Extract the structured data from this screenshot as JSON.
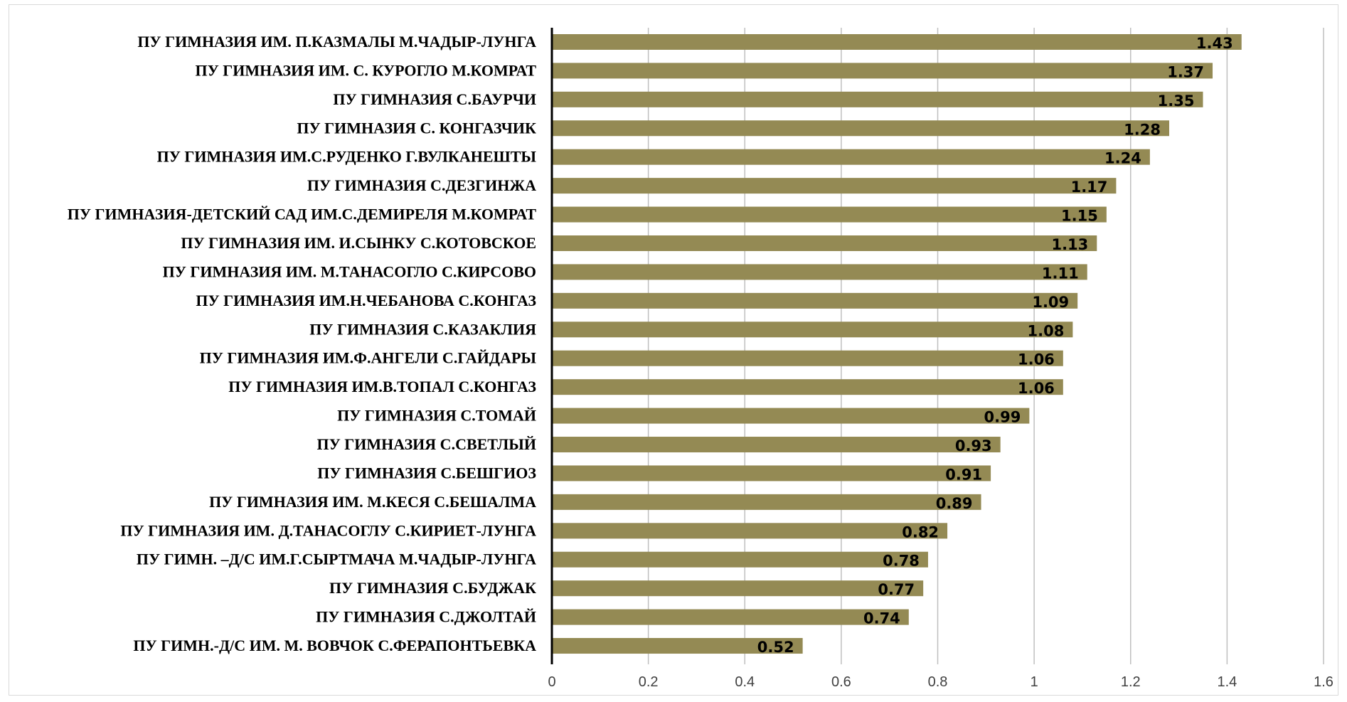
{
  "chart_data": {
    "type": "bar",
    "orientation": "horizontal",
    "categories": [
      "ПУ ГИМНАЗИЯ ИМ. П.КАЗМАЛЫ М.ЧАДЫР-ЛУНГА",
      "ПУ ГИМНАЗИЯ ИМ. С. КУРОГЛО М.КОМРАТ",
      "ПУ ГИМНАЗИЯ С.БАУРЧИ",
      "ПУ ГИМНАЗИЯ С. КОНГАЗЧИК",
      "ПУ ГИМНАЗИЯ ИМ.С.РУДЕНКО Г.ВУЛКАНЕШТЫ",
      "ПУ ГИМНАЗИЯ С.ДЕЗГИНЖА",
      "ПУ ГИМНАЗИЯ-ДЕТСКИЙ САД ИМ.С.ДЕМИРЕЛЯ М.КОМРАТ",
      "ПУ ГИМНАЗИЯ ИМ. И.СЫНКУ С.КОТОВСКОЕ",
      "ПУ ГИМНАЗИЯ ИМ. М.ТАНАСОГЛО С.КИРСОВО",
      "ПУ ГИМНАЗИЯ ИМ.Н.ЧЕБАНОВА С.КОНГАЗ",
      "ПУ ГИМНАЗИЯ С.КАЗАКЛИЯ",
      "ПУ ГИМНАЗИЯ ИМ.Ф.АНГЕЛИ С.ГАЙДАРЫ",
      "ПУ ГИМНАЗИЯ ИМ.В.ТОПАЛ С.КОНГАЗ",
      "ПУ ГИМНАЗИЯ С.ТОМАЙ",
      "ПУ ГИМНАЗИЯ С.СВЕТЛЫЙ",
      "ПУ ГИМНАЗИЯ С.БЕШГИОЗ",
      "ПУ ГИМНАЗИЯ ИМ. М.КЕСЯ С.БЕШАЛМА",
      "ПУ ГИМНАЗИЯ ИМ. Д.ТАНАСОГЛУ С.КИРИЕТ-ЛУНГА",
      "ПУ ГИМН. –Д/С ИМ.Г.СЫРТМАЧА М.ЧАДЫР-ЛУНГА",
      "ПУ ГИМНАЗИЯ С.БУДЖАК",
      "ПУ ГИМНАЗИЯ С.ДЖОЛТАЙ",
      "ПУ ГИМН.-Д/С ИМ. М. ВОВЧОК С.ФЕРАПОНТЬЕВКА"
    ],
    "values": [
      1.43,
      1.37,
      1.35,
      1.28,
      1.24,
      1.17,
      1.15,
      1.13,
      1.11,
      1.09,
      1.08,
      1.06,
      1.06,
      0.99,
      0.93,
      0.91,
      0.89,
      0.82,
      0.78,
      0.77,
      0.74,
      0.52
    ],
    "value_labels": [
      "1.43",
      "1.37",
      "1.35",
      "1.28",
      "1.24",
      "1.17",
      "1.15",
      "1.13",
      "1.11",
      "1.09",
      "1.08",
      "1.06",
      "1.06",
      "0.99",
      "0.93",
      "0.91",
      "0.89",
      "0.82",
      "0.78",
      "0.77",
      "0.74",
      "0.52"
    ],
    "xlim": [
      0,
      1.6
    ],
    "ticks": [
      0,
      0.2,
      0.4,
      0.6,
      0.8,
      1,
      1.2,
      1.4,
      1.6
    ],
    "tick_labels": [
      "0",
      "0.2",
      "0.4",
      "0.6",
      "0.8",
      "1",
      "1.2",
      "1.4",
      "1.6"
    ],
    "grid": true,
    "legend": false,
    "title": "",
    "xlabel": "",
    "ylabel": "",
    "colors": {
      "bar": "#948a54",
      "gridline": "#bfbfbf",
      "axis": "#000000"
    }
  }
}
